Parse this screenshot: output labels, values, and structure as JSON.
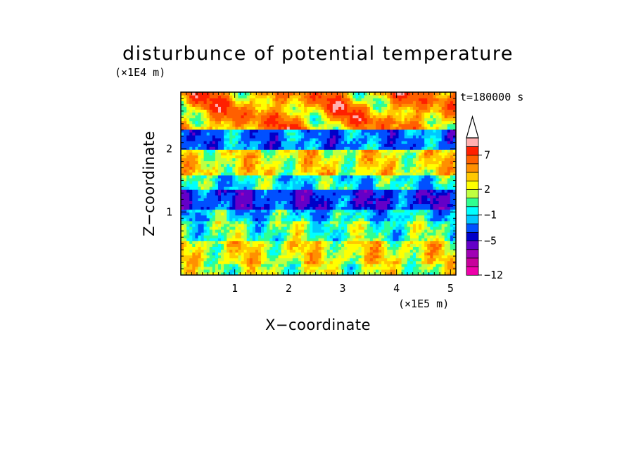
{
  "chart_data": {
    "type": "heatmap",
    "title": "disturbunce of potential temperature",
    "xlabel": "X−coordinate",
    "ylabel": "Z−coordinate",
    "x_unit": "(×1E5 m)",
    "y_unit": "(×1E4 m)",
    "time_label": "t=180000 s",
    "xlim": [
      0,
      5.1
    ],
    "ylim": [
      0,
      2.9
    ],
    "x_ticks": [
      "1",
      "2",
      "3",
      "4",
      "5"
    ],
    "y_ticks": [
      "1",
      "2"
    ],
    "colorbar": {
      "levels": [
        -12,
        -10,
        -8,
        -7,
        -5,
        -4,
        -2,
        -1,
        0,
        1,
        2,
        3,
        4,
        5,
        7,
        9,
        11
      ],
      "tick_labels": [
        "−12",
        "−5",
        "−1",
        "2",
        "7"
      ],
      "colors": [
        "#ee00aa",
        "#c8009c",
        "#a000b4",
        "#6400c8",
        "#0000c8",
        "#0050ff",
        "#00c8ff",
        "#00ffff",
        "#30ff90",
        "#c0ff40",
        "#ffff00",
        "#ffc800",
        "#ff9000",
        "#ff6000",
        "#ff2000",
        "#ffb0b0"
      ],
      "extend": "max"
    },
    "bands": [
      {
        "z": [
          0.0,
          0.2
        ],
        "value": 1.5,
        "description": "yellow-green near surface"
      },
      {
        "z": [
          0.2,
          0.55
        ],
        "value": 2.5,
        "description": "yellow"
      },
      {
        "z": [
          0.55,
          0.85
        ],
        "value": 0.5,
        "description": "green"
      },
      {
        "z": [
          0.85,
          1.05
        ],
        "value": -1.0,
        "description": "cyan"
      },
      {
        "z": [
          1.05,
          1.35
        ],
        "value": -4.0,
        "description": "blue layer"
      },
      {
        "z": [
          1.35,
          1.6
        ],
        "value": -0.5,
        "description": "cyan-green"
      },
      {
        "z": [
          1.6,
          2.0
        ],
        "value": 2.5,
        "description": "yellow-orange"
      },
      {
        "z": [
          2.0,
          2.3
        ],
        "value": -2.5,
        "description": "blue band"
      },
      {
        "z": [
          2.3,
          2.9
        ],
        "value": 4.5,
        "description": "orange-red aloft"
      }
    ]
  }
}
